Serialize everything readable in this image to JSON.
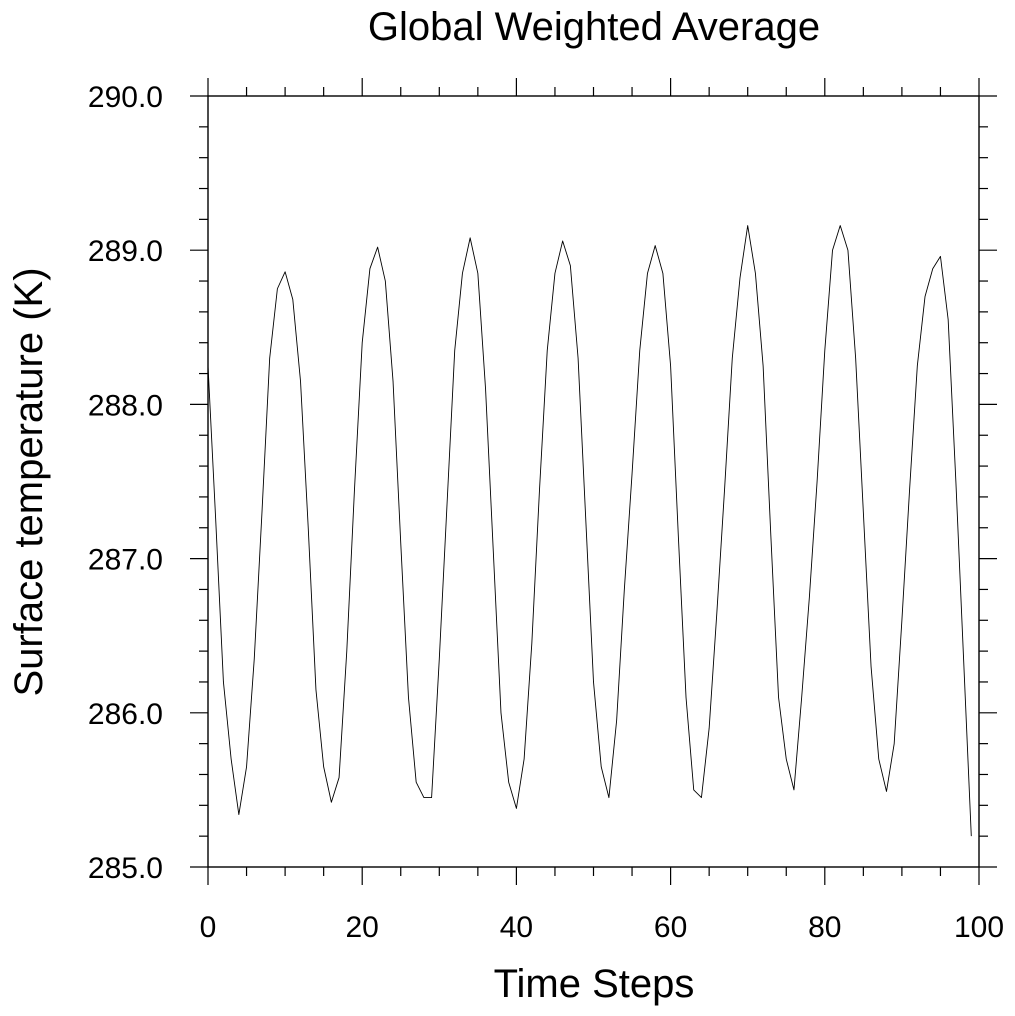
{
  "chart_data": {
    "type": "line",
    "title": "Global Weighted Average",
    "xlabel": "Time Steps",
    "ylabel": "Surface temperature (K)",
    "xlim": [
      0,
      100
    ],
    "ylim": [
      285.0,
      290.0
    ],
    "x_ticks": [
      0,
      20,
      40,
      60,
      80,
      100
    ],
    "x_tick_labels": [
      "0",
      "20",
      "40",
      "60",
      "80",
      "100"
    ],
    "x_minor_step": 5,
    "y_ticks": [
      285.0,
      286.0,
      287.0,
      288.0,
      289.0,
      290.0
    ],
    "y_tick_labels": [
      "285.0",
      "286.0",
      "287.0",
      "288.0",
      "289.0",
      "290.0"
    ],
    "y_minor_step": 0.2,
    "grid": false,
    "series": [
      {
        "x": [
          0,
          1,
          2,
          3,
          4,
          5,
          6,
          7,
          8,
          9,
          10,
          11,
          12,
          13,
          14,
          15,
          16,
          17,
          18,
          19,
          20,
          21,
          22,
          23,
          24,
          25,
          26,
          27,
          28,
          29,
          30,
          31,
          32,
          33,
          34,
          35,
          36,
          37,
          38,
          39,
          40,
          41,
          42,
          43,
          44,
          45,
          46,
          47,
          48,
          49,
          50,
          51,
          52,
          53,
          54,
          55,
          56,
          57,
          58,
          59,
          60,
          61,
          62,
          63,
          64,
          65,
          66,
          67,
          68,
          69,
          70,
          71,
          72,
          73,
          74,
          75,
          76,
          77,
          78,
          79,
          80,
          81,
          82,
          83,
          84,
          85,
          86,
          87,
          88,
          89,
          90,
          91,
          92,
          93,
          94,
          95,
          96,
          97,
          98,
          99
        ],
        "values": [
          288.25,
          287.25,
          286.2,
          285.7,
          285.34,
          285.65,
          286.35,
          287.3,
          288.3,
          288.75,
          288.86,
          288.68,
          288.15,
          287.2,
          286.15,
          285.65,
          285.42,
          285.58,
          286.4,
          287.45,
          288.4,
          288.88,
          289.02,
          288.8,
          288.15,
          287.1,
          286.1,
          285.55,
          285.45,
          285.45,
          286.35,
          287.35,
          288.35,
          288.85,
          289.08,
          288.85,
          288.1,
          287.05,
          286.0,
          285.55,
          285.38,
          285.7,
          286.45,
          287.45,
          288.35,
          288.85,
          289.06,
          288.9,
          288.3,
          287.25,
          286.2,
          285.65,
          285.45,
          285.95,
          286.8,
          287.55,
          288.35,
          288.85,
          289.03,
          288.85,
          288.25,
          287.15,
          286.1,
          285.5,
          285.45,
          285.9,
          286.65,
          287.45,
          288.3,
          288.82,
          289.16,
          288.85,
          288.25,
          287.15,
          286.1,
          285.7,
          285.5,
          286.1,
          286.75,
          287.5,
          288.35,
          289.0,
          289.16,
          289.0,
          288.3,
          287.3,
          286.3,
          285.7,
          285.49,
          285.8,
          286.6,
          287.45,
          288.25,
          288.7,
          288.88,
          288.96,
          288.55,
          287.5,
          286.35,
          285.2
        ]
      }
    ]
  }
}
